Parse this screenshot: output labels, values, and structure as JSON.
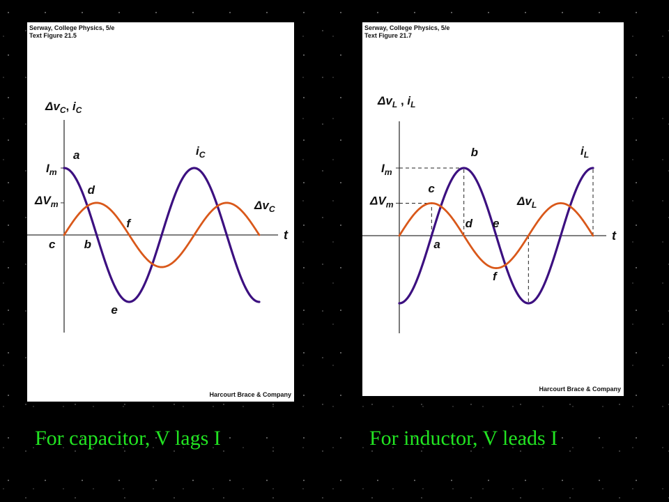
{
  "colors": {
    "voltage": "#d9581a",
    "current": "#3c1080",
    "caption": "#22e422"
  },
  "left": {
    "source": "Serway, College Physics, 5/e",
    "figure": "Text Figure 21.5",
    "credit": "Harcourt Brace & Company",
    "caption": "For capacitor, V lags I",
    "chart_data": {
      "type": "line",
      "title": "",
      "ylabel": "ΔvC, iC",
      "xlabel": "t",
      "x_unit": "cycles",
      "xlim": [
        0,
        1.5
      ],
      "ylim": [
        -1,
        1
      ],
      "grid": false,
      "series": [
        {
          "name": "iC",
          "function": "cosine",
          "amplitude": 1.0,
          "phase_deg": 0,
          "color": "#3c1080"
        },
        {
          "name": "ΔvC",
          "function": "sine",
          "amplitude": 0.48,
          "phase_deg": 0,
          "color": "#d9581a"
        }
      ],
      "axis_marks": {
        "current_amplitude": "Im",
        "voltage_amplitude": "ΔVm"
      },
      "point_labels": [
        {
          "label": "a",
          "x": 0
        },
        {
          "label": "b",
          "x": 0.25
        },
        {
          "label": "c",
          "x": 0
        },
        {
          "label": "d",
          "x": 0.25
        },
        {
          "label": "e",
          "x": 0.5
        },
        {
          "label": "f",
          "x": 0.5
        }
      ]
    }
  },
  "right": {
    "source": "Serway, College Physics, 5/e",
    "figure": "Text Figure 21.7",
    "credit": "Harcourt Brace & Company",
    "caption": "For inductor, V leads I",
    "chart_data": {
      "type": "line",
      "title": "",
      "ylabel": "ΔvL , iL",
      "xlabel": "t",
      "x_unit": "cycles",
      "xlim": [
        0,
        1.5
      ],
      "ylim": [
        -1,
        1
      ],
      "grid": false,
      "series": [
        {
          "name": "iL",
          "function": "negative cosine",
          "amplitude": 1.0,
          "phase_deg": 0,
          "color": "#3c1080"
        },
        {
          "name": "ΔvL",
          "function": "sine",
          "amplitude": 0.48,
          "phase_deg": 0,
          "color": "#d9581a"
        }
      ],
      "axis_marks": {
        "current_amplitude": "Im",
        "voltage_amplitude": "ΔVm"
      },
      "point_labels": [
        {
          "label": "a",
          "x": 0.25
        },
        {
          "label": "b",
          "x": 0.5
        },
        {
          "label": "c",
          "x": 0.25
        },
        {
          "label": "d",
          "x": 0.5
        },
        {
          "label": "e",
          "x": 0.75
        },
        {
          "label": "f",
          "x": 0.75
        }
      ],
      "dashed_guides": [
        0.25,
        0.5,
        1.0,
        1.5
      ]
    }
  }
}
